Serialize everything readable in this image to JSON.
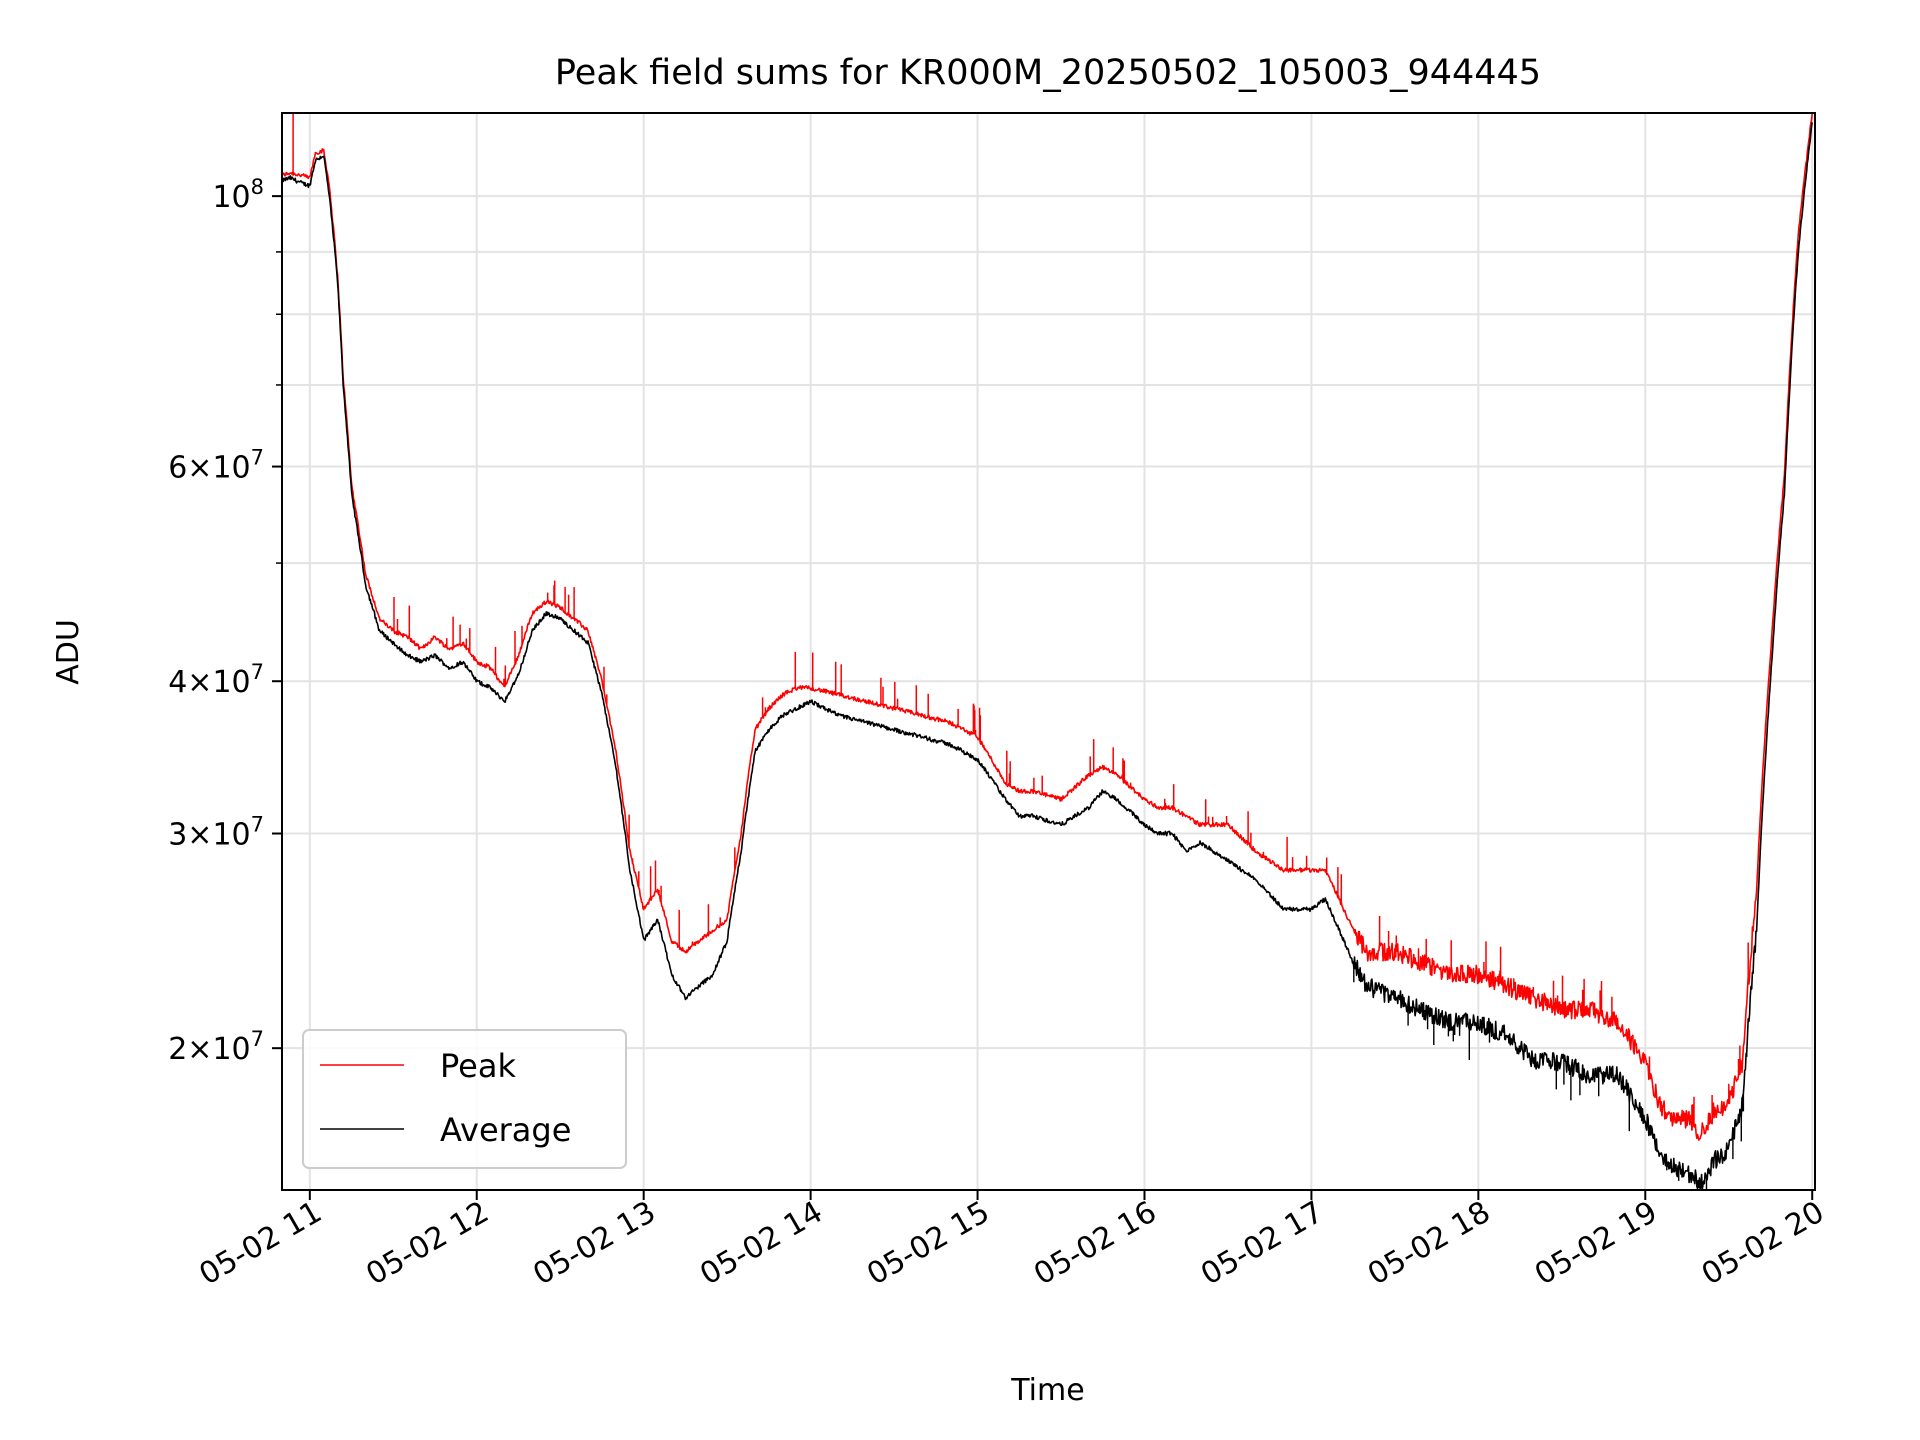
{
  "chart_data": {
    "type": "line",
    "title": "Peak field sums for KR000M_20250502_105003_944445",
    "xlabel": "Time",
    "ylabel": "ADU",
    "y_scale": "log",
    "grid": true,
    "legend_position": "lower-left",
    "xlim": [
      "2025-05-02 10:50",
      "2025-05-02 20:01"
    ],
    "ylim": [
      15300000,
      117000000
    ],
    "x_ticks": [
      "05-02 11",
      "05-02 12",
      "05-02 13",
      "05-02 14",
      "05-02 15",
      "05-02 16",
      "05-02 17",
      "05-02 18",
      "05-02 19",
      "05-02 20"
    ],
    "y_major_ticks": [
      {
        "value": 100000000,
        "base": "10",
        "exp": "8"
      },
      {
        "value": 60000000,
        "mant": "6",
        "base": "10",
        "exp": "7"
      },
      {
        "value": 40000000,
        "mant": "4",
        "base": "10",
        "exp": "7"
      },
      {
        "value": 30000000,
        "mant": "3",
        "base": "10",
        "exp": "7"
      },
      {
        "value": 20000000,
        "mant": "2",
        "base": "10",
        "exp": "7"
      }
    ],
    "y_minor_ticks": [
      50000000,
      70000000,
      80000000,
      90000000
    ],
    "series": [
      {
        "name": "Peak",
        "color": "#ff0000",
        "role": "peak"
      },
      {
        "name": "Average",
        "color": "#000000",
        "role": "average"
      }
    ],
    "x": [
      "10:50",
      "10:53",
      "10:57",
      "11:00",
      "11:02",
      "11:05",
      "11:07",
      "11:10",
      "11:12",
      "11:15",
      "11:20",
      "11:25",
      "11:30",
      "11:35",
      "11:40",
      "11:45",
      "11:50",
      "11:55",
      "12:00",
      "12:05",
      "12:10",
      "12:15",
      "12:20",
      "12:25",
      "12:30",
      "12:35",
      "12:40",
      "12:45",
      "12:50",
      "12:55",
      "13:00",
      "13:05",
      "13:10",
      "13:15",
      "13:20",
      "13:25",
      "13:30",
      "13:35",
      "13:40",
      "13:45",
      "13:50",
      "13:55",
      "14:00",
      "14:10",
      "14:20",
      "14:30",
      "14:40",
      "14:50",
      "15:00",
      "15:10",
      "15:15",
      "15:20",
      "15:30",
      "15:40",
      "15:45",
      "15:50",
      "16:00",
      "16:05",
      "16:10",
      "16:15",
      "16:20",
      "16:30",
      "16:40",
      "16:50",
      "17:00",
      "17:05",
      "17:10",
      "17:15",
      "17:20",
      "17:30",
      "17:40",
      "17:50",
      "18:00",
      "18:10",
      "18:20",
      "18:30",
      "18:40",
      "18:50",
      "19:00",
      "19:05",
      "19:10",
      "19:15",
      "19:20",
      "19:25",
      "19:30",
      "19:35",
      "19:40",
      "19:45",
      "19:50",
      "19:55",
      "20:00"
    ],
    "average": [
      103000000,
      103500000,
      102500000,
      102000000,
      107000000,
      108000000,
      100000000,
      85000000,
      70000000,
      57000000,
      48000000,
      44000000,
      43000000,
      42000000,
      41500000,
      42000000,
      41000000,
      41500000,
      40000000,
      39500000,
      38500000,
      40500000,
      44000000,
      45500000,
      45000000,
      44000000,
      43000000,
      39000000,
      34000000,
      28000000,
      24500000,
      25500000,
      23000000,
      22000000,
      22500000,
      23000000,
      24500000,
      29000000,
      35000000,
      36500000,
      37500000,
      38000000,
      38500000,
      37500000,
      37000000,
      36500000,
      36000000,
      35500000,
      34500000,
      32000000,
      31000000,
      31000000,
      30500000,
      31500000,
      32500000,
      32000000,
      30500000,
      30000000,
      30000000,
      29000000,
      29500000,
      28500000,
      27500000,
      26000000,
      26000000,
      26500000,
      25000000,
      23500000,
      22500000,
      22000000,
      21500000,
      21000000,
      21000000,
      20500000,
      19500000,
      19500000,
      19000000,
      19000000,
      17500000,
      16500000,
      16000000,
      15800000,
      15500000,
      16200000,
      16500000,
      18000000,
      25000000,
      40000000,
      57000000,
      90000000,
      115000000
    ],
    "peak": [
      104000000,
      104500000,
      104000000,
      103500000,
      108500000,
      109000000,
      102000000,
      86000000,
      71000000,
      58000000,
      49000000,
      45000000,
      44000000,
      43500000,
      42500000,
      43500000,
      42500000,
      43000000,
      41500000,
      41000000,
      39500000,
      42000000,
      45500000,
      46500000,
      46000000,
      45000000,
      44000000,
      40000000,
      35000000,
      29000000,
      26000000,
      27000000,
      24500000,
      24000000,
      24500000,
      25000000,
      25500000,
      30000000,
      36500000,
      38000000,
      39000000,
      39500000,
      39500000,
      39000000,
      38500000,
      38000000,
      37500000,
      37000000,
      36000000,
      33000000,
      32500000,
      32500000,
      32000000,
      33500000,
      34000000,
      33500000,
      32000000,
      31500000,
      31500000,
      31000000,
      30500000,
      30500000,
      29000000,
      28000000,
      28000000,
      28000000,
      26500000,
      25000000,
      24000000,
      24000000,
      23500000,
      23000000,
      23000000,
      22500000,
      22000000,
      21500000,
      21500000,
      21000000,
      19500000,
      18000000,
      17500000,
      17500000,
      17000000,
      17800000,
      18000000,
      19500000,
      27000000,
      42000000,
      59000000,
      93000000,
      117000000
    ],
    "peak_spike": {
      "time": "10:54",
      "value": 117000000
    }
  }
}
